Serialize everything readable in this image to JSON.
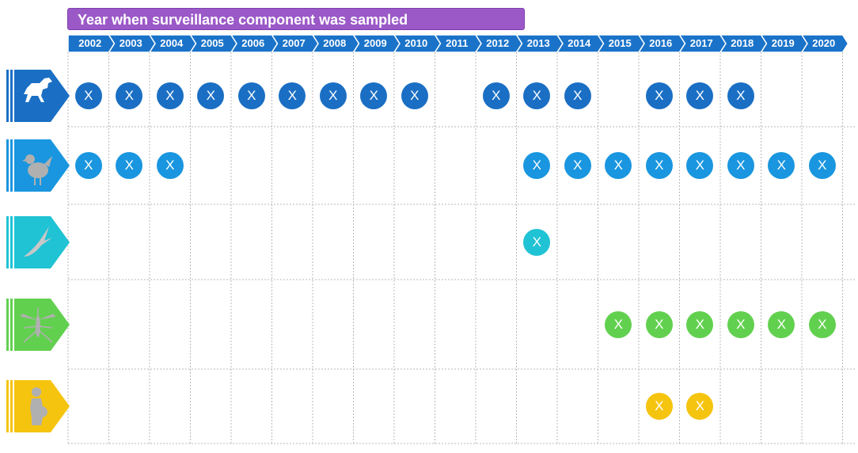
{
  "title": "Year when surveillance component was sampled",
  "years": [
    "2002",
    "2003",
    "2004",
    "2005",
    "2006",
    "2007",
    "2008",
    "2009",
    "2010",
    "2011",
    "2012",
    "2013",
    "2014",
    "2015",
    "2016",
    "2017",
    "2018",
    "2019",
    "2020"
  ],
  "mark_label": "X",
  "colors": {
    "title_bg": "#9b59c8",
    "timeline": "#1a73c9",
    "grid": "#b8b8b8"
  },
  "rows": [
    {
      "icon": "horse-icon",
      "color": "#1a6fc4",
      "sampled": [
        "2002",
        "2003",
        "2004",
        "2005",
        "2006",
        "2007",
        "2008",
        "2009",
        "2010",
        "2012",
        "2013",
        "2014",
        "2016",
        "2017",
        "2018"
      ]
    },
    {
      "icon": "chicken-icon",
      "color": "#1996df",
      "sampled": [
        "2002",
        "2003",
        "2004",
        "2013",
        "2014",
        "2015",
        "2016",
        "2017",
        "2018",
        "2019",
        "2020"
      ]
    },
    {
      "icon": "bird-icon",
      "color": "#1fc3d4",
      "sampled": [
        "2013"
      ]
    },
    {
      "icon": "mosquito-icon",
      "color": "#62d04f",
      "sampled": [
        "2015",
        "2016",
        "2017",
        "2018",
        "2019",
        "2020"
      ]
    },
    {
      "icon": "pregnant-woman-icon",
      "color": "#f5c40f",
      "sampled": [
        "2016",
        "2017"
      ]
    }
  ]
}
